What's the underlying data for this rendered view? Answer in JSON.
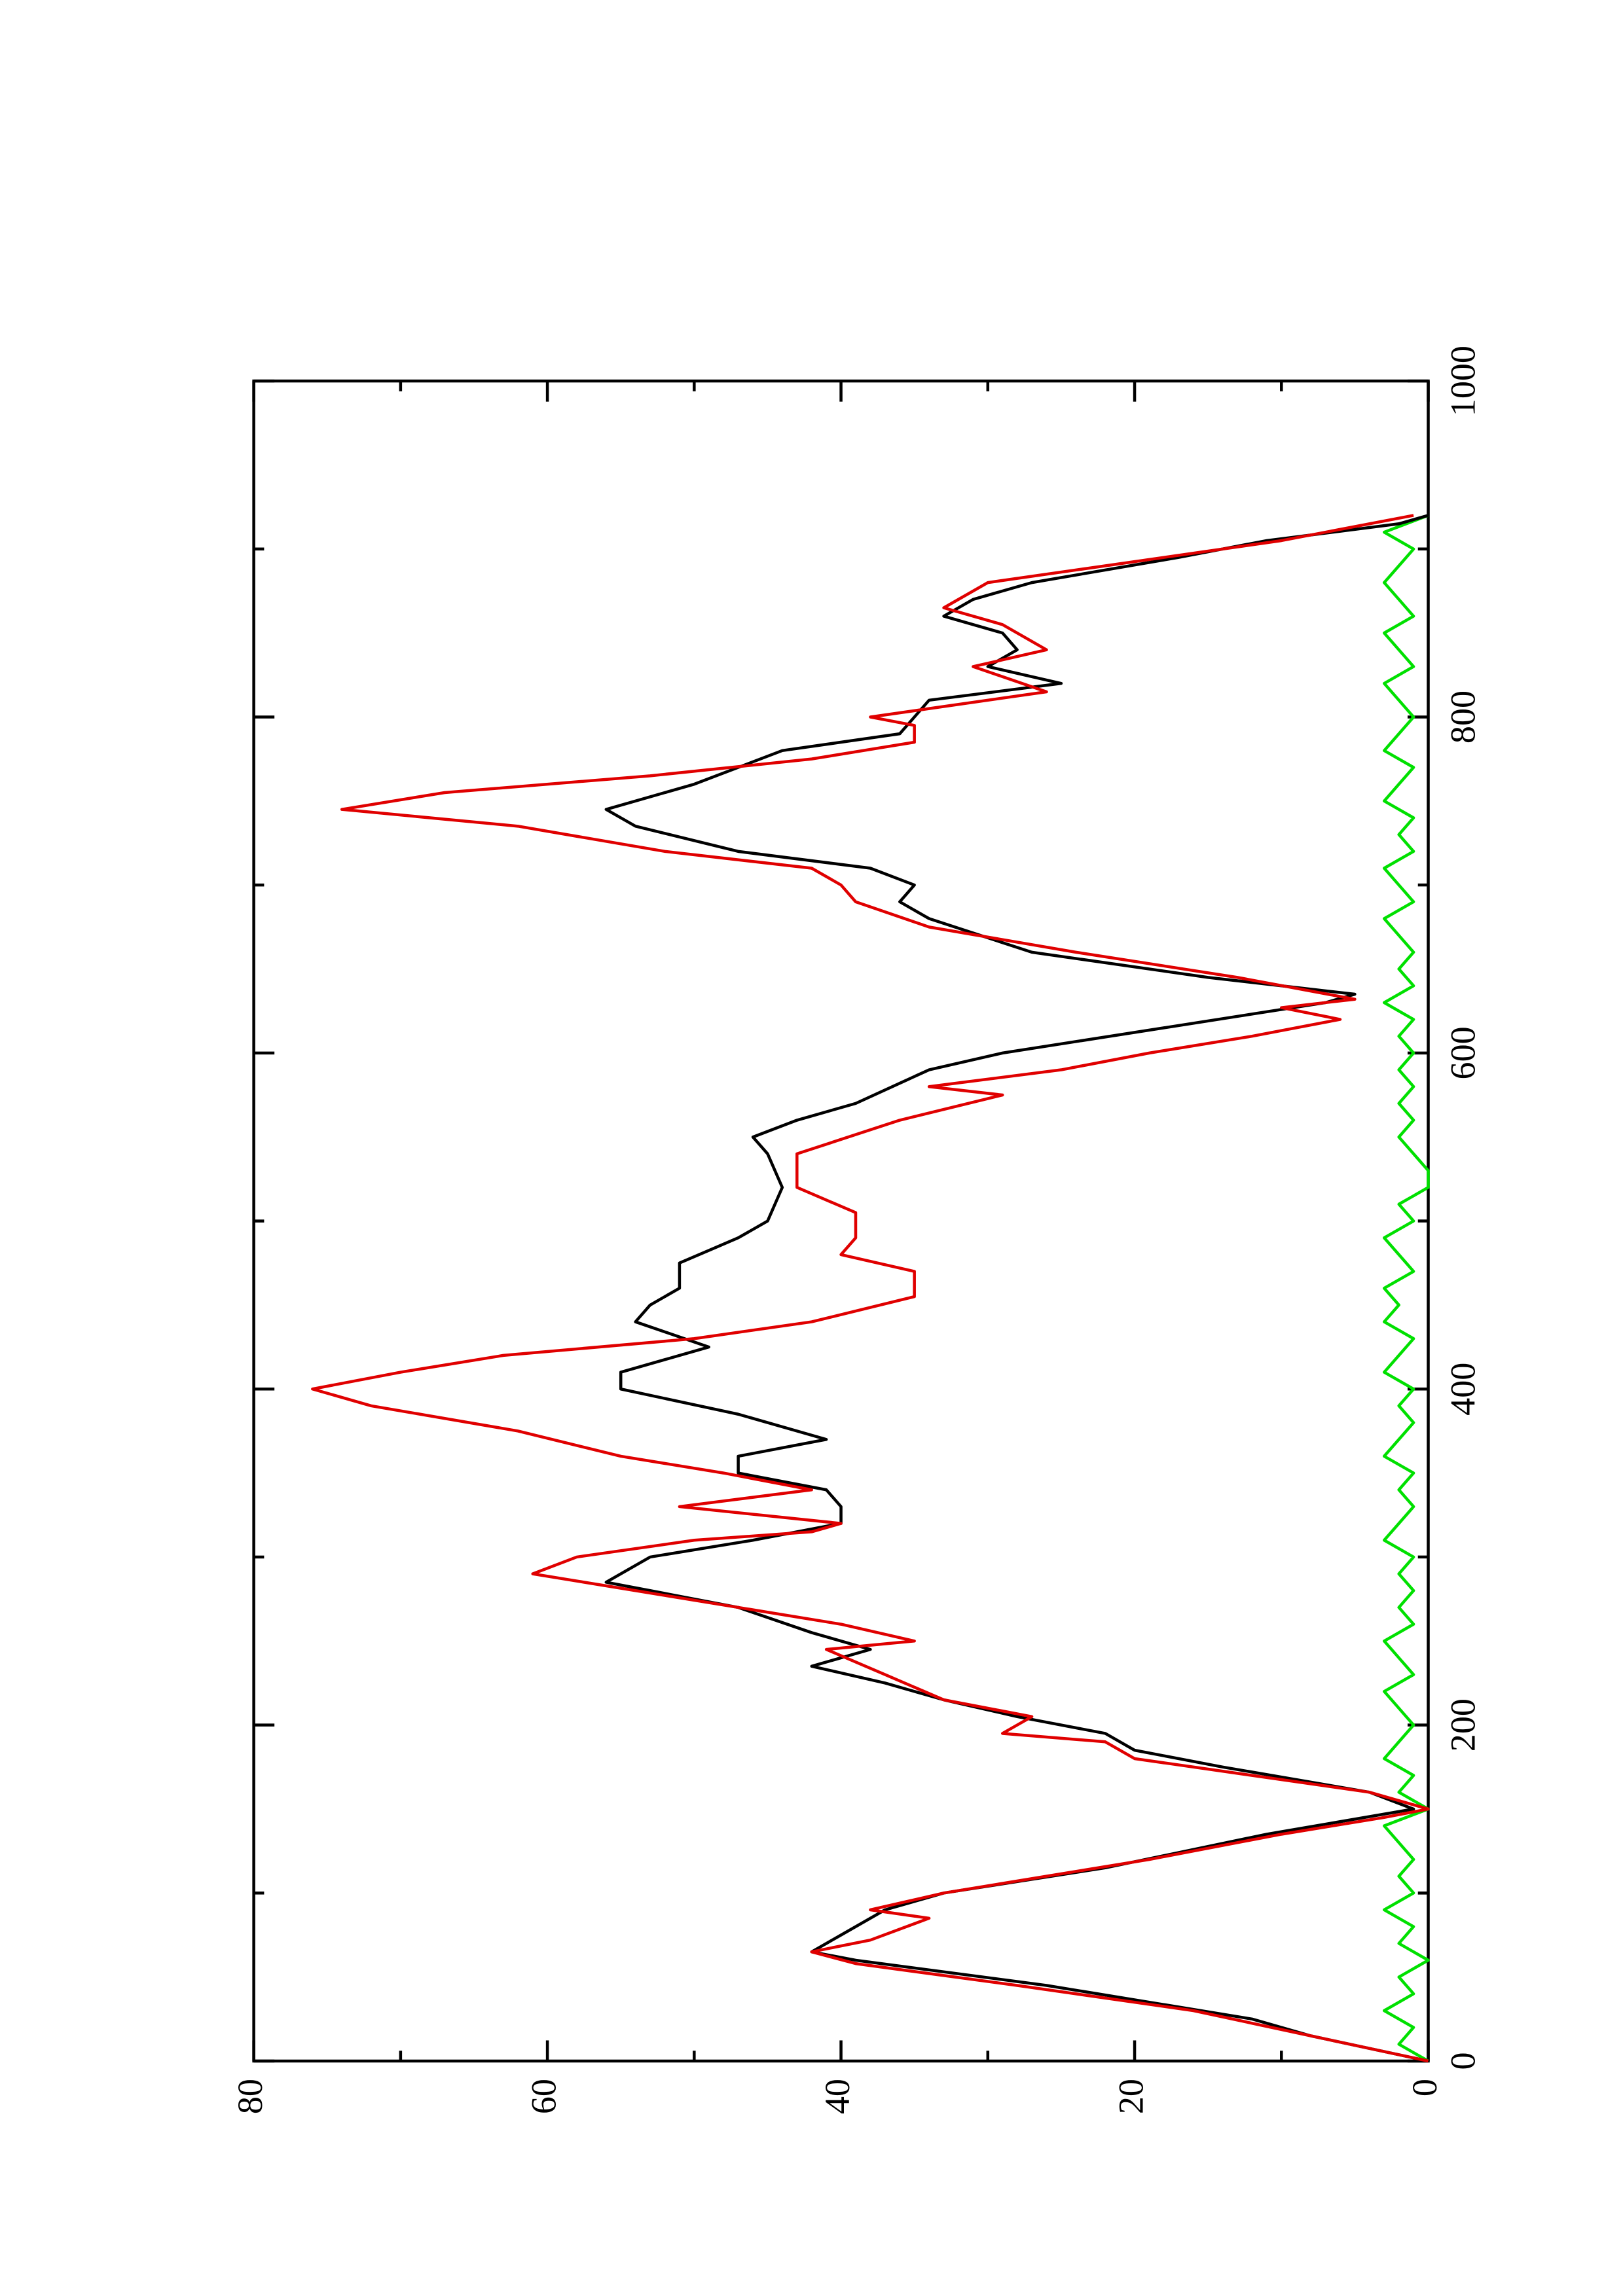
{
  "chart_data": {
    "type": "line",
    "xlim": [
      0,
      1000
    ],
    "xticks": [
      0,
      200,
      400,
      600,
      800,
      1000
    ],
    "ylim": [
      0,
      80
    ],
    "yticks": [
      0,
      20,
      40,
      60,
      80
    ],
    "series": [
      {
        "color": "#000000",
        "x": [
          0,
          15,
          25,
          45,
          60,
          65,
          75,
          90,
          100,
          115,
          135,
          150,
          160,
          175,
          185,
          195,
          205,
          215,
          225,
          235,
          245,
          255,
          270,
          280,
          285,
          300,
          310,
          320,
          330,
          340,
          350,
          360,
          370,
          385,
          400,
          410,
          425,
          440,
          450,
          460,
          475,
          490,
          500,
          520,
          540,
          550,
          560,
          570,
          590,
          600,
          615,
          630,
          635,
          645,
          660,
          680,
          690,
          700,
          710,
          720,
          735,
          745,
          760,
          780,
          790,
          810,
          820,
          830,
          840,
          850,
          860,
          870,
          880,
          895,
          905,
          915,
          920
        ],
        "values": [
          0,
          8,
          12,
          26,
          39,
          42,
          40,
          37,
          33,
          22,
          11,
          1,
          4,
          14,
          20,
          22,
          28,
          33,
          37,
          42,
          38,
          42,
          47,
          53,
          56,
          53,
          46,
          40,
          40,
          41,
          47,
          47,
          41,
          47,
          55,
          55,
          49,
          54,
          53,
          51,
          51,
          47,
          45,
          44,
          45,
          46,
          43,
          39,
          34,
          29,
          18,
          7,
          5,
          15,
          27,
          34,
          36,
          35,
          38,
          47,
          54,
          56,
          50,
          44,
          36,
          34,
          25,
          30,
          28,
          29,
          33,
          31,
          27,
          17,
          11,
          2,
          0
        ]
      },
      {
        "color": "#e00000",
        "x": [
          0,
          15,
          30,
          45,
          58,
          65,
          72,
          85,
          90,
          100,
          110,
          120,
          135,
          145,
          150,
          160,
          170,
          180,
          190,
          195,
          205,
          215,
          230,
          245,
          250,
          260,
          270,
          280,
          290,
          300,
          310,
          315,
          320,
          330,
          340,
          350,
          360,
          375,
          390,
          400,
          410,
          420,
          430,
          440,
          455,
          470,
          480,
          490,
          505,
          520,
          540,
          560,
          575,
          580,
          590,
          600,
          610,
          620,
          627,
          632,
          645,
          660,
          675,
          690,
          700,
          710,
          720,
          735,
          745,
          755,
          765,
          775,
          785,
          795,
          800,
          815,
          830,
          840,
          855,
          865,
          880,
          890,
          905,
          920
        ],
        "values": [
          0,
          8,
          16,
          28,
          39,
          42,
          38,
          34,
          38,
          33,
          26,
          19,
          10,
          3,
          0,
          4,
          12,
          20,
          22,
          29,
          27,
          33,
          37,
          41,
          35,
          40,
          47,
          54,
          61,
          58,
          50,
          42,
          40,
          51,
          42,
          48,
          55,
          62,
          72,
          76,
          70,
          63,
          50,
          42,
          35,
          35,
          40,
          39,
          39,
          43,
          43,
          36,
          29,
          34,
          25,
          19,
          12,
          6,
          10,
          5,
          13,
          24,
          34,
          39,
          40,
          42,
          52,
          62,
          74,
          67,
          53,
          42,
          35,
          35,
          38,
          26,
          31,
          26,
          29,
          33,
          30,
          22,
          10,
          1
        ]
      },
      {
        "color": "#00e000",
        "x": [
          0,
          10,
          20,
          30,
          40,
          50,
          60,
          70,
          80,
          90,
          100,
          110,
          120,
          130,
          140,
          150,
          160,
          170,
          180,
          190,
          200,
          210,
          220,
          230,
          240,
          250,
          260,
          270,
          280,
          290,
          300,
          310,
          320,
          330,
          340,
          350,
          360,
          370,
          380,
          390,
          400,
          410,
          420,
          430,
          440,
          450,
          460,
          470,
          480,
          490,
          500,
          510,
          520,
          530,
          540,
          550,
          560,
          570,
          580,
          590,
          600,
          610,
          620,
          630,
          640,
          650,
          660,
          670,
          680,
          690,
          700,
          710,
          720,
          730,
          740,
          750,
          760,
          770,
          780,
          790,
          800,
          810,
          820,
          830,
          840,
          850,
          860,
          870,
          880,
          890,
          900,
          910,
          920
        ],
        "values": [
          0,
          2,
          1,
          3,
          1,
          2,
          0,
          2,
          1,
          3,
          1,
          2,
          1,
          2,
          3,
          0,
          2,
          1,
          3,
          2,
          1,
          2,
          3,
          1,
          2,
          3,
          1,
          2,
          1,
          2,
          1,
          3,
          2,
          1,
          2,
          1,
          3,
          2,
          1,
          2,
          1,
          3,
          2,
          1,
          3,
          2,
          3,
          1,
          2,
          3,
          1,
          2,
          0,
          0,
          1,
          2,
          1,
          2,
          1,
          2,
          1,
          2,
          1,
          3,
          1,
          2,
          1,
          2,
          3,
          1,
          2,
          3,
          1,
          2,
          1,
          3,
          2,
          1,
          3,
          2,
          1,
          2,
          3,
          1,
          2,
          3,
          1,
          2,
          3,
          2,
          1,
          3,
          0
        ]
      }
    ]
  }
}
